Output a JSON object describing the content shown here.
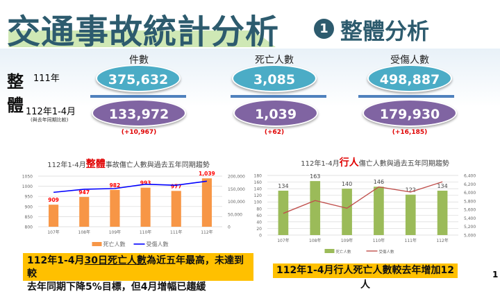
{
  "header": {
    "title": "交通事故統計分析",
    "section_number": "1",
    "section_title": "整體分析"
  },
  "summary": {
    "row_label_chars": [
      "整",
      "體"
    ],
    "year_111": "111年",
    "year_112": "112年1-4月",
    "compare_note": "(與去年同期比較)",
    "columns": [
      {
        "label": "件數",
        "v111": "375,632",
        "v112": "133,972",
        "diff": "(+10,967)"
      },
      {
        "label": "死亡人數",
        "v111": "3,085",
        "v112": "1,039",
        "diff": "(+62)"
      },
      {
        "label": "受傷人數",
        "v111": "498,887",
        "v112": "179,930",
        "diff": "(+16,185)"
      }
    ]
  },
  "colors": {
    "teal": "#4bacc6",
    "purple": "#8064a2",
    "highlight": "#ffc000",
    "bar_orange": "#f79646",
    "bar_green": "#9bbb59",
    "line_blue": "#0000ff",
    "line_red": "#c0504d"
  },
  "chart_data": [
    {
      "type": "bar",
      "title_prefix": "112年1-4月",
      "title_highlight": "整體",
      "title_suffix": "事故傷亡人數與過去五年同期趨勢",
      "categories": [
        "107年",
        "108年",
        "109年",
        "110年",
        "111年",
        "112年"
      ],
      "series": [
        {
          "name": "死亡人數",
          "type": "bar",
          "axis": "left",
          "values": [
            909,
            947,
            982,
            993,
            977,
            1039
          ],
          "labels": [
            "909",
            "947",
            "982",
            "993",
            "977",
            "1,039"
          ]
        },
        {
          "name": "受傷人數",
          "type": "line",
          "axis": "right",
          "values": [
            136000,
            148000,
            151000,
            168000,
            164000,
            179930
          ]
        }
      ],
      "left_ylim": [
        800,
        1050
      ],
      "left_ticks": [
        "800",
        "850",
        "900",
        "950",
        "1000",
        "1050"
      ],
      "right_ylim": [
        0,
        200000
      ],
      "right_ticks": [
        "0",
        "50,000",
        "100,000",
        "150,000",
        "200,000"
      ],
      "grid": true,
      "legend": "bottom"
    },
    {
      "type": "bar",
      "title_prefix": "112年1-4月",
      "title_highlight": "行人",
      "title_suffix": "傷亡人數與過去五年同期趨勢",
      "categories": [
        "107年",
        "108年",
        "109年",
        "110年",
        "111年",
        "112年"
      ],
      "series": [
        {
          "name": "死亡人數",
          "type": "bar",
          "axis": "left",
          "values": [
            134,
            163,
            140,
            146,
            122,
            134
          ],
          "labels": [
            "134",
            "163",
            "140",
            "146",
            "122",
            "134"
          ]
        },
        {
          "name": "受傷人數",
          "type": "line",
          "axis": "right",
          "values": [
            5510,
            5810,
            5630,
            6130,
            6010,
            6250
          ]
        }
      ],
      "left_ylim": [
        0,
        180
      ],
      "left_ticks": [
        "0",
        "20",
        "40",
        "60",
        "80",
        "100",
        "120",
        "140",
        "160",
        "180"
      ],
      "right_ylim": [
        5000,
        6400
      ],
      "right_ticks": [
        "5,000",
        "5,200",
        "5,400",
        "5,600",
        "5,800",
        "6,000",
        "6,200",
        "6,400"
      ],
      "grid": true,
      "legend": "bottom"
    }
  ],
  "notes": {
    "overall_line1_a": "112年1-4月",
    "overall_line1_b": "30日死亡人數",
    "overall_line1_c": "為近五年最高，未達到較",
    "overall_line2": "去年同期下降5%目標，但4月增幅已趨緩",
    "pedestrian": "112年1-4月行人死亡人數較去年增加12人"
  },
  "page_number": "1"
}
